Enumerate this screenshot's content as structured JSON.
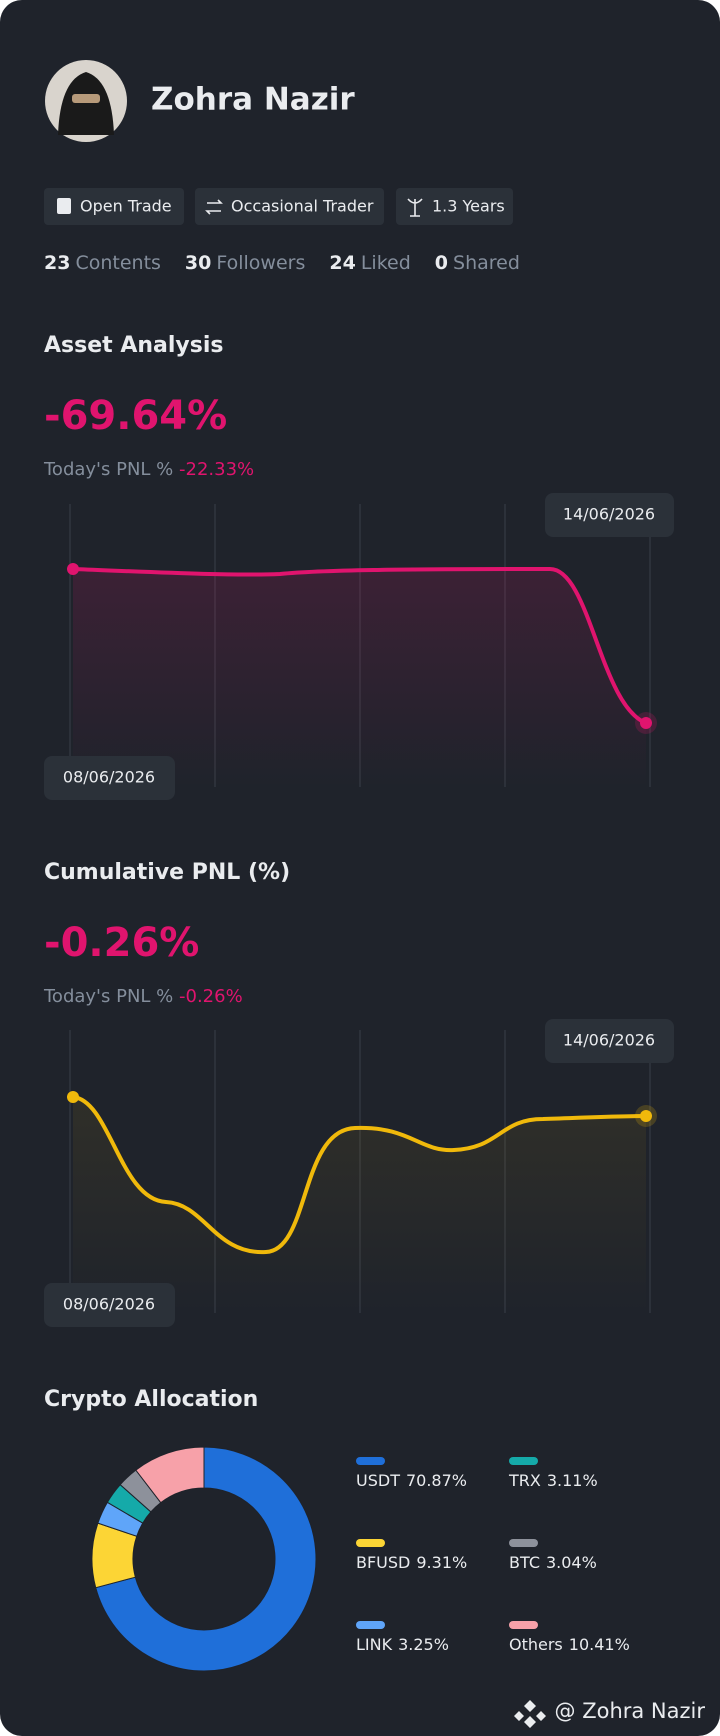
{
  "profile": {
    "name": "Zohra Nazir",
    "tags": [
      "Open Trade",
      "Occasional Trader",
      "1.3 Years"
    ],
    "stats": [
      {
        "count": 23,
        "label": "Contents"
      },
      {
        "count": 30,
        "label": "Followers"
      },
      {
        "count": 24,
        "label": "Liked"
      },
      {
        "count": 0,
        "label": "Shared"
      }
    ]
  },
  "asset_analysis": {
    "title": "Asset Analysis",
    "value": "-69.64%",
    "today_label": "Today's PNL %",
    "today_value": "-22.33%",
    "start_date": "08/06/2026",
    "end_date": "14/06/2026"
  },
  "cumulative_pnl": {
    "title": "Cumulative PNL (%)",
    "value": "-0.26%",
    "today_label": "Today's PNL %",
    "today_value": "-0.26%",
    "start_date": "08/06/2026",
    "end_date": "14/06/2026"
  },
  "chart_data": {
    "type": "pie",
    "title": "Crypto Allocation",
    "categories": [
      "USDT",
      "BFUSD",
      "LINK",
      "TRX",
      "BTC",
      "Others"
    ],
    "values": [
      70.87,
      9.31,
      3.25,
      3.11,
      3.04,
      10.41
    ],
    "value_labels": [
      "70.87%",
      "9.31%",
      "3.25%",
      "3.11%",
      "3.04%",
      "10.41%"
    ],
    "colors": [
      "#1f6fd9",
      "#fcd535",
      "#5fa5f9",
      "#15aaa9",
      "#8d919b",
      "#f7a1a9"
    ]
  },
  "footer": {
    "watermark": "@ Zohra Nazir"
  }
}
